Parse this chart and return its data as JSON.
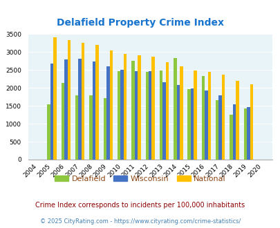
{
  "title": "Delafield Property Crime Index",
  "title_color": "#1874CD",
  "years": [
    2004,
    2005,
    2006,
    2007,
    2008,
    2009,
    2010,
    2011,
    2012,
    2013,
    2014,
    2015,
    2016,
    2017,
    2018,
    2019,
    2020
  ],
  "delafield": [
    0,
    1550,
    2150,
    1800,
    1800,
    1720,
    2460,
    2750,
    2440,
    2480,
    2830,
    1970,
    2330,
    1650,
    1260,
    1420,
    0
  ],
  "wisconsin": [
    0,
    2680,
    2800,
    2820,
    2740,
    2600,
    2500,
    2460,
    2460,
    2160,
    2090,
    1980,
    1930,
    1790,
    1540,
    1460,
    0
  ],
  "national": [
    0,
    3420,
    3330,
    3260,
    3200,
    3040,
    2950,
    2920,
    2870,
    2720,
    2600,
    2490,
    2450,
    2370,
    2200,
    2110,
    0
  ],
  "delafield_color": "#8DC63F",
  "wisconsin_color": "#4472C4",
  "national_color": "#FFC000",
  "plot_bg_color": "#E8F4F8",
  "ylim": [
    0,
    3500
  ],
  "yticks": [
    0,
    500,
    1000,
    1500,
    2000,
    2500,
    3000,
    3500
  ],
  "legend_labels": [
    "Delafield",
    "Wisconsin",
    "National"
  ],
  "legend_text_color": "#8B4513",
  "footnote1": "Crime Index corresponds to incidents per 100,000 inhabitants",
  "footnote2": "© 2025 CityRating.com - https://www.cityrating.com/crime-statistics/",
  "footnote1_color": "#8B0000",
  "footnote2_color": "#4682B4",
  "bar_width": 0.22
}
